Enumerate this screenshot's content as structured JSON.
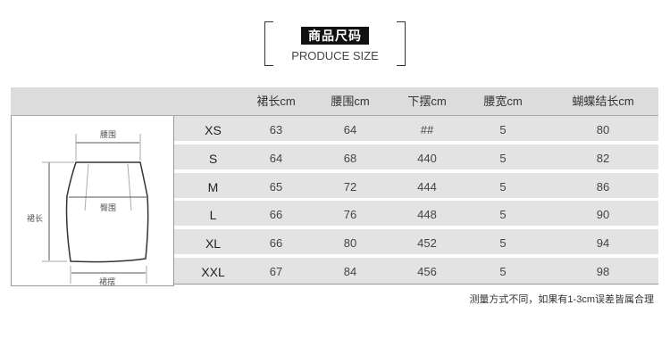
{
  "title": {
    "cn": "商品尺码",
    "en": "PRODUCE SIZE"
  },
  "diagram": {
    "waist": "腰围",
    "hip": "臀围",
    "length": "裙长",
    "hem": "裙摆"
  },
  "table": {
    "headers": [
      "裙长cm",
      "腰围cm",
      "下摆cm",
      "腰宽cm",
      "蝴蝶结长cm"
    ],
    "rows": [
      {
        "size": "XS",
        "values": [
          "63",
          "64",
          "##",
          "5",
          "80"
        ]
      },
      {
        "size": "S",
        "values": [
          "64",
          "68",
          "440",
          "5",
          "82"
        ]
      },
      {
        "size": "M",
        "values": [
          "65",
          "72",
          "444",
          "5",
          "86"
        ]
      },
      {
        "size": "L",
        "values": [
          "66",
          "76",
          "448",
          "5",
          "90"
        ]
      },
      {
        "size": "XL",
        "values": [
          "66",
          "80",
          "452",
          "5",
          "94"
        ]
      },
      {
        "size": "XXL",
        "values": [
          "67",
          "84",
          "456",
          "5",
          "98"
        ]
      }
    ]
  },
  "note": "测量方式不同，如果有1-3cm误差皆属合理"
}
